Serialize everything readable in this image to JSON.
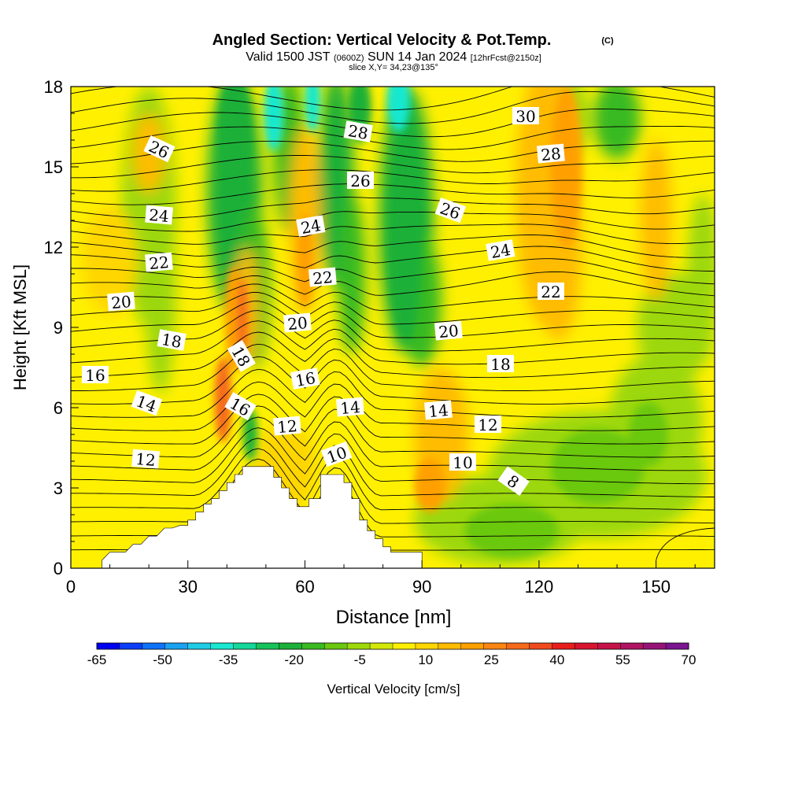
{
  "chart_data": {
    "type": "heatmap",
    "title": "Angled Section: Vertical Velocity & Pot.Temp.",
    "title_unit": "(C)",
    "subtitle": {
      "prefix": "Valid 1500 JST",
      "utc": "(0600Z)",
      "date": "SUN 14 Jan 2024",
      "forecast": "[12hrFcst@2150z]"
    },
    "slice_label": "slice X,Y= 34,23@135°",
    "xlabel": "Distance [nm]",
    "ylabel": "Height [Kft MSL]",
    "xlim": [
      0,
      165
    ],
    "ylim": [
      0,
      18
    ],
    "x_ticks": [
      "0",
      "30",
      "60",
      "90",
      "120",
      "150"
    ],
    "y_ticks": [
      "0",
      "3",
      "6",
      "9",
      "12",
      "15",
      "18"
    ],
    "colorbar": {
      "label": "Vertical Velocity [cm/s]",
      "tick_labels": [
        "-65",
        "-50",
        "-35",
        "-20",
        "-5",
        "10",
        "25",
        "40",
        "55",
        "70"
      ],
      "colors": [
        "#0000f0",
        "#0a3ef8",
        "#0f72f8",
        "#1aa2f0",
        "#1ecce6",
        "#18e8d0",
        "#14d89a",
        "#16c25a",
        "#1cb038",
        "#38ba20",
        "#6ac810",
        "#9cd80a",
        "#d2e808",
        "#fff000",
        "#ffd600",
        "#ffbc00",
        "#ffa000",
        "#fb8614",
        "#f56a1a",
        "#ee4a1c",
        "#e81e1a",
        "#d8142e",
        "#c41448",
        "#b01462",
        "#961478",
        "#7a1490"
      ]
    },
    "contour_labels_theta": [
      "8",
      "10",
      "10",
      "12",
      "12",
      "12",
      "14",
      "14",
      "14",
      "16",
      "16",
      "16",
      "18",
      "18",
      "18",
      "20",
      "20",
      "20",
      "22",
      "22",
      "22",
      "24",
      "24",
      "24",
      "26",
      "26",
      "26",
      "28",
      "28",
      "30"
    ],
    "terrain_nm_kft": [
      [
        0,
        0.3
      ],
      [
        8,
        0.3
      ],
      [
        10,
        0.6
      ],
      [
        14,
        0.6
      ],
      [
        16,
        0.9
      ],
      [
        18,
        0.9
      ],
      [
        20,
        1.2
      ],
      [
        22,
        1.2
      ],
      [
        24,
        1.5
      ],
      [
        26,
        1.5
      ],
      [
        28,
        1.6
      ],
      [
        30,
        1.6
      ],
      [
        30,
        1.8
      ],
      [
        32,
        1.8
      ],
      [
        32,
        2.1
      ],
      [
        34,
        2.1
      ],
      [
        34,
        2.4
      ],
      [
        36,
        2.4
      ],
      [
        36,
        2.6
      ],
      [
        38,
        2.6
      ],
      [
        38,
        2.9
      ],
      [
        40,
        2.9
      ],
      [
        40,
        3.2
      ],
      [
        42,
        3.2
      ],
      [
        42,
        3.5
      ],
      [
        44,
        3.5
      ],
      [
        44,
        3.8
      ],
      [
        52,
        3.8
      ],
      [
        52,
        3.4
      ],
      [
        54,
        3.4
      ],
      [
        54,
        3.0
      ],
      [
        56,
        3.0
      ],
      [
        56,
        2.6
      ],
      [
        58,
        2.6
      ],
      [
        58,
        2.3
      ],
      [
        61,
        2.3
      ],
      [
        61,
        2.6
      ],
      [
        64,
        2.6
      ],
      [
        64,
        3.5
      ],
      [
        70,
        3.5
      ],
      [
        70,
        3.2
      ],
      [
        72,
        3.2
      ],
      [
        72,
        2.6
      ],
      [
        74,
        2.6
      ],
      [
        74,
        1.8
      ],
      [
        76,
        1.8
      ],
      [
        76,
        1.4
      ],
      [
        78,
        1.4
      ],
      [
        78,
        1.1
      ],
      [
        80,
        1.1
      ],
      [
        80,
        0.8
      ],
      [
        82,
        0.8
      ],
      [
        82,
        0.6
      ],
      [
        90,
        0.6
      ],
      [
        90,
        0.3
      ],
      [
        165,
        0.3
      ]
    ]
  }
}
